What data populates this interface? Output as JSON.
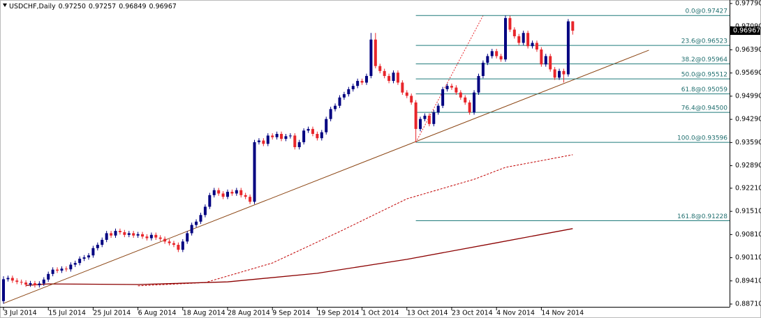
{
  "chart_data": {
    "type": "candlestick",
    "symbol": "USDCHF,Daily",
    "last_bar_labels": [
      "0.97250",
      "0.97257",
      "0.96849",
      "0.96967"
    ],
    "bull_color": "#000080",
    "bear_color": "#e8262b",
    "xlim": [
      -0.78,
      162
    ],
    "ylim": [
      0.88626,
      0.97895
    ],
    "xticks": [
      {
        "value": 0,
        "label": "3 Jul 2014"
      },
      {
        "value": 10,
        "label": "15 Jul 2014"
      },
      {
        "value": 20,
        "label": "25 Jul 2014"
      },
      {
        "value": 30,
        "label": "6 Aug 2014"
      },
      {
        "value": 40,
        "label": "18 Aug 2014"
      },
      {
        "value": 50,
        "label": "28 Aug 2014"
      },
      {
        "value": 60,
        "label": "9 Sep 2014"
      },
      {
        "value": 70,
        "label": "19 Sep 2014"
      },
      {
        "value": 80,
        "label": "1 Oct 2014"
      },
      {
        "value": 90,
        "label": "13 Oct 2014"
      },
      {
        "value": 100,
        "label": "23 Oct 2014"
      },
      {
        "value": 110,
        "label": "4 Nov 2014"
      },
      {
        "value": 120,
        "label": "14 Nov 2014"
      }
    ],
    "yticks": [
      {
        "value": 0.9779,
        "label": "0.97790"
      },
      {
        "value": 0.9709,
        "label": "0.97090"
      },
      {
        "value": 0.9639,
        "label": "0.96390"
      },
      {
        "value": 0.9569,
        "label": "0.95690"
      },
      {
        "value": 0.9499,
        "label": "0.94990"
      },
      {
        "value": 0.9429,
        "label": "0.94290"
      },
      {
        "value": 0.9359,
        "label": "0.93590"
      },
      {
        "value": 0.9289,
        "label": "0.92890"
      },
      {
        "value": 0.9221,
        "label": "0.92210"
      },
      {
        "value": 0.9151,
        "label": "0.91510"
      },
      {
        "value": 0.9081,
        "label": "0.90810"
      },
      {
        "value": 0.9011,
        "label": "0.90110"
      },
      {
        "value": 0.8941,
        "label": "0.89410"
      },
      {
        "value": 0.8871,
        "label": "0.88710"
      }
    ],
    "ohlc": [
      [
        0.888,
        0.8955,
        0.8872,
        0.8946
      ],
      [
        0.8946,
        0.8957,
        0.8939,
        0.895
      ],
      [
        0.895,
        0.8957,
        0.8935,
        0.8942
      ],
      [
        0.8942,
        0.8949,
        0.8931,
        0.8938
      ],
      [
        0.8938,
        0.8945,
        0.8929,
        0.8936
      ],
      [
        0.8936,
        0.8943,
        0.8923,
        0.893
      ],
      [
        0.893,
        0.8941,
        0.8923,
        0.8934
      ],
      [
        0.8934,
        0.8941,
        0.8921,
        0.8928
      ],
      [
        0.8928,
        0.894,
        0.8921,
        0.8933
      ],
      [
        0.8933,
        0.8952,
        0.8926,
        0.8945
      ],
      [
        0.8945,
        0.8969,
        0.8938,
        0.8962
      ],
      [
        0.8962,
        0.8982,
        0.8955,
        0.8975
      ],
      [
        0.8975,
        0.8982,
        0.8965,
        0.8972
      ],
      [
        0.8972,
        0.8985,
        0.8965,
        0.8978
      ],
      [
        0.8978,
        0.8985,
        0.8969,
        0.8976
      ],
      [
        0.8976,
        0.8997,
        0.8969,
        0.899
      ],
      [
        0.899,
        0.9002,
        0.8983,
        0.8995
      ],
      [
        0.8995,
        0.9015,
        0.8988,
        0.9008
      ],
      [
        0.9008,
        0.9019,
        0.9001,
        0.9012
      ],
      [
        0.9012,
        0.9025,
        0.9005,
        0.9018
      ],
      [
        0.9018,
        0.9047,
        0.9011,
        0.904
      ],
      [
        0.904,
        0.9057,
        0.9033,
        0.905
      ],
      [
        0.905,
        0.9072,
        0.9043,
        0.9065
      ],
      [
        0.9065,
        0.9092,
        0.9058,
        0.9085
      ],
      [
        0.9085,
        0.9092,
        0.9071,
        0.9078
      ],
      [
        0.9078,
        0.9099,
        0.9071,
        0.9092
      ],
      [
        0.9092,
        0.9099,
        0.9081,
        0.9088
      ],
      [
        0.9088,
        0.9095,
        0.9073,
        0.908
      ],
      [
        0.908,
        0.9092,
        0.9073,
        0.9085
      ],
      [
        0.9085,
        0.9092,
        0.9071,
        0.9078
      ],
      [
        0.9078,
        0.9089,
        0.9071,
        0.9082
      ],
      [
        0.9082,
        0.9089,
        0.9068,
        0.9075
      ],
      [
        0.9075,
        0.9082,
        0.9063,
        0.907
      ],
      [
        0.907,
        0.9087,
        0.9063,
        0.908
      ],
      [
        0.908,
        0.9087,
        0.9065,
        0.9072
      ],
      [
        0.9072,
        0.9079,
        0.9061,
        0.9068
      ],
      [
        0.9068,
        0.9075,
        0.9053,
        0.906
      ],
      [
        0.906,
        0.9067,
        0.9048,
        0.9055
      ],
      [
        0.9055,
        0.9062,
        0.9043,
        0.905
      ],
      [
        0.905,
        0.9057,
        0.9028,
        0.9035
      ],
      [
        0.9035,
        0.9067,
        0.9028,
        0.906
      ],
      [
        0.906,
        0.9092,
        0.9053,
        0.9085
      ],
      [
        0.9085,
        0.9117,
        0.9078,
        0.911
      ],
      [
        0.911,
        0.9127,
        0.9103,
        0.912
      ],
      [
        0.912,
        0.9147,
        0.9113,
        0.914
      ],
      [
        0.914,
        0.9172,
        0.9133,
        0.9165
      ],
      [
        0.9165,
        0.9207,
        0.9158,
        0.92
      ],
      [
        0.92,
        0.9222,
        0.9193,
        0.9215
      ],
      [
        0.9215,
        0.9222,
        0.9198,
        0.9205
      ],
      [
        0.9205,
        0.9212,
        0.9188,
        0.9195
      ],
      [
        0.9195,
        0.9217,
        0.9188,
        0.921
      ],
      [
        0.921,
        0.9217,
        0.9198,
        0.9205
      ],
      [
        0.9205,
        0.9222,
        0.9198,
        0.9215
      ],
      [
        0.9215,
        0.9222,
        0.9193,
        0.92
      ],
      [
        0.92,
        0.9207,
        0.9188,
        0.9195
      ],
      [
        0.9195,
        0.9202,
        0.9173,
        0.918
      ],
      [
        0.918,
        0.9367,
        0.9173,
        0.936
      ],
      [
        0.936,
        0.9372,
        0.9353,
        0.9365
      ],
      [
        0.9365,
        0.9372,
        0.9348,
        0.9355
      ],
      [
        0.9355,
        0.9387,
        0.9348,
        0.938
      ],
      [
        0.938,
        0.9387,
        0.9368,
        0.9375
      ],
      [
        0.9375,
        0.9392,
        0.9368,
        0.9385
      ],
      [
        0.9385,
        0.9392,
        0.9363,
        0.937
      ],
      [
        0.937,
        0.9385,
        0.9363,
        0.9378
      ],
      [
        0.9378,
        0.9387,
        0.9371,
        0.938
      ],
      [
        0.938,
        0.9387,
        0.9338,
        0.9345
      ],
      [
        0.9345,
        0.9367,
        0.9338,
        0.936
      ],
      [
        0.936,
        0.9402,
        0.9353,
        0.9395
      ],
      [
        0.9395,
        0.9407,
        0.9388,
        0.94
      ],
      [
        0.94,
        0.9407,
        0.9378,
        0.9385
      ],
      [
        0.9385,
        0.9392,
        0.9365,
        0.9372
      ],
      [
        0.9372,
        0.9397,
        0.9365,
        0.939
      ],
      [
        0.939,
        0.9437,
        0.9383,
        0.943
      ],
      [
        0.943,
        0.9467,
        0.9423,
        0.946
      ],
      [
        0.946,
        0.9477,
        0.9453,
        0.947
      ],
      [
        0.947,
        0.9502,
        0.9463,
        0.9495
      ],
      [
        0.9495,
        0.9512,
        0.9488,
        0.9505
      ],
      [
        0.9505,
        0.9527,
        0.9498,
        0.952
      ],
      [
        0.952,
        0.9537,
        0.9513,
        0.953
      ],
      [
        0.953,
        0.9552,
        0.9523,
        0.9545
      ],
      [
        0.9545,
        0.9552,
        0.9533,
        0.954
      ],
      [
        0.954,
        0.9567,
        0.9533,
        0.956
      ],
      [
        0.956,
        0.969,
        0.9553,
        0.967
      ],
      [
        0.967,
        0.969,
        0.9583,
        0.959
      ],
      [
        0.959,
        0.9597,
        0.9568,
        0.9575
      ],
      [
        0.9575,
        0.9582,
        0.9553,
        0.956
      ],
      [
        0.956,
        0.9567,
        0.9538,
        0.9545
      ],
      [
        0.9545,
        0.9577,
        0.9538,
        0.957
      ],
      [
        0.957,
        0.9577,
        0.9533,
        0.954
      ],
      [
        0.954,
        0.9547,
        0.9503,
        0.951
      ],
      [
        0.951,
        0.9517,
        0.9493,
        0.95
      ],
      [
        0.95,
        0.9507,
        0.9473,
        0.948
      ],
      [
        0.948,
        0.9487,
        0.936,
        0.94
      ],
      [
        0.94,
        0.9437,
        0.9393,
        0.943
      ],
      [
        0.943,
        0.9447,
        0.9423,
        0.944
      ],
      [
        0.944,
        0.9447,
        0.9408,
        0.9415
      ],
      [
        0.9415,
        0.9457,
        0.9408,
        0.945
      ],
      [
        0.945,
        0.9477,
        0.9443,
        0.947
      ],
      [
        0.947,
        0.9527,
        0.9463,
        0.952
      ],
      [
        0.952,
        0.9537,
        0.9513,
        0.953
      ],
      [
        0.953,
        0.9537,
        0.9518,
        0.9525
      ],
      [
        0.9525,
        0.9532,
        0.9503,
        0.951
      ],
      [
        0.951,
        0.9517,
        0.9488,
        0.9495
      ],
      [
        0.9495,
        0.9502,
        0.9473,
        0.948
      ],
      [
        0.948,
        0.9487,
        0.9443,
        0.945
      ],
      [
        0.945,
        0.9517,
        0.9443,
        0.951
      ],
      [
        0.951,
        0.9567,
        0.9503,
        0.956
      ],
      [
        0.956,
        0.9607,
        0.9553,
        0.96
      ],
      [
        0.96,
        0.9627,
        0.9593,
        0.962
      ],
      [
        0.962,
        0.9642,
        0.9613,
        0.9635
      ],
      [
        0.9635,
        0.9642,
        0.9613,
        0.962
      ],
      [
        0.962,
        0.9627,
        0.9603,
        0.961
      ],
      [
        0.961,
        0.9743,
        0.9603,
        0.9735
      ],
      [
        0.9735,
        0.9742,
        0.9693,
        0.97
      ],
      [
        0.97,
        0.9707,
        0.9673,
        0.968
      ],
      [
        0.968,
        0.9687,
        0.9653,
        0.966
      ],
      [
        0.966,
        0.9697,
        0.9653,
        0.969
      ],
      [
        0.969,
        0.9697,
        0.9643,
        0.965
      ],
      [
        0.965,
        0.9667,
        0.9643,
        0.966
      ],
      [
        0.966,
        0.9667,
        0.9633,
        0.964
      ],
      [
        0.964,
        0.9647,
        0.9588,
        0.9595
      ],
      [
        0.9595,
        0.9627,
        0.9588,
        0.962
      ],
      [
        0.962,
        0.9627,
        0.9573,
        0.958
      ],
      [
        0.958,
        0.9587,
        0.9548,
        0.9555
      ],
      [
        0.9555,
        0.9582,
        0.9548,
        0.9575
      ],
      [
        0.9575,
        0.9582,
        0.954,
        0.9565
      ],
      [
        0.9565,
        0.9732,
        0.9558,
        0.9725
      ],
      [
        0.9725,
        0.97257,
        0.96849,
        0.96967
      ]
    ],
    "indicators": [
      {
        "color": "#c00000",
        "dash": true,
        "x": [
          30,
          45,
          60,
          75,
          90,
          105,
          112,
          127
        ],
        "values": [
          0.8926,
          0.8936,
          0.8995,
          0.909,
          0.9189,
          0.9248,
          0.9284,
          0.9322
        ]
      },
      {
        "color": "#8b0000",
        "dash": false,
        "x": [
          5,
          10,
          30,
          50,
          70,
          90,
          110,
          127
        ],
        "values": [
          0.8927,
          0.8932,
          0.893,
          0.8938,
          0.8964,
          0.9006,
          0.9056,
          0.9099
        ]
      }
    ],
    "trendline": {
      "color": "#8b4513",
      "x": [
        0,
        144
      ],
      "values": [
        0.8873,
        0.9638
      ]
    },
    "fibo": {
      "color": "#1f7a7a",
      "x": [
        92,
        107
      ],
      "levels": [
        {
          "value": 0.97427,
          "label": "0.0@0.97427"
        },
        {
          "value": 0.96523,
          "label": "23.6@0.96523"
        },
        {
          "value": 0.95964,
          "label": "38.2@0.95964"
        },
        {
          "value": 0.95512,
          "label": "50.0@0.95512"
        },
        {
          "value": 0.95059,
          "label": "61.8@0.95059"
        },
        {
          "value": 0.945,
          "label": "76.4@0.94500"
        },
        {
          "value": 0.93596,
          "label": "100.0@0.93596"
        },
        {
          "value": 0.91228,
          "label": "161.8@0.91228"
        }
      ]
    }
  }
}
